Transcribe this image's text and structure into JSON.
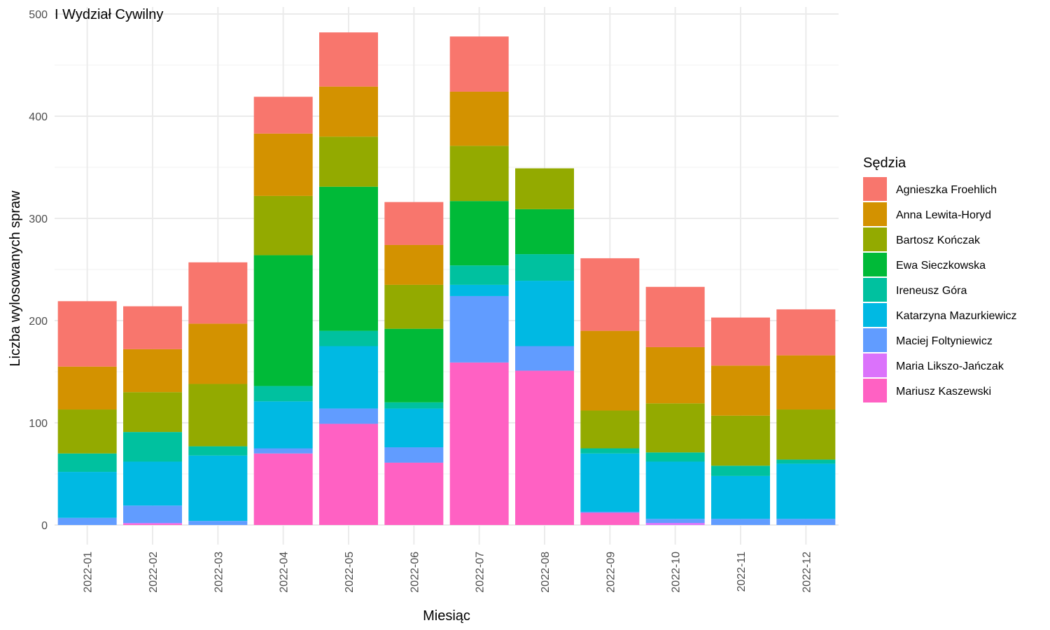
{
  "chart_data": {
    "type": "bar",
    "stacked": true,
    "panel_label": "I Wydział Cywilny",
    "xlabel": "Miesiąc",
    "ylabel": "Liczba wylosowanych spraw",
    "legend_title": "Sędzia",
    "legend_position": "right",
    "grid": true,
    "ylim": [
      0,
      500
    ],
    "yticks": [
      0,
      100,
      200,
      300,
      400,
      500
    ],
    "categories": [
      "2022-01",
      "2022-02",
      "2022-03",
      "2022-04",
      "2022-05",
      "2022-06",
      "2022-07",
      "2022-08",
      "2022-09",
      "2022-10",
      "2022-11",
      "2022-12"
    ],
    "series": [
      {
        "name": "Agnieszka Froehlich",
        "color": "#F8766D",
        "values": [
          64,
          42,
          60,
          36,
          53,
          42,
          54,
          0,
          71,
          59,
          47,
          45
        ]
      },
      {
        "name": "Anna Lewita-Horyd",
        "color": "#D39200",
        "values": [
          42,
          42,
          59,
          61,
          49,
          39,
          53,
          0,
          78,
          55,
          49,
          53
        ]
      },
      {
        "name": "Bartosz Kończak",
        "color": "#93AA00",
        "values": [
          43,
          39,
          61,
          58,
          49,
          43,
          54,
          40,
          37,
          48,
          49,
          49
        ]
      },
      {
        "name": "Ewa Sieczkowska",
        "color": "#00BA38",
        "values": [
          0,
          0,
          0,
          128,
          141,
          72,
          63,
          44,
          0,
          0,
          0,
          0
        ]
      },
      {
        "name": "Ireneusz Góra",
        "color": "#00C19F",
        "values": [
          18,
          29,
          9,
          15,
          15,
          6,
          19,
          26,
          5,
          9,
          10,
          4
        ]
      },
      {
        "name": "Katarzyna Mazurkiewicz",
        "color": "#00B9E3",
        "values": [
          45,
          43,
          64,
          46,
          61,
          38,
          11,
          64,
          57,
          56,
          42,
          54
        ]
      },
      {
        "name": "Maciej Foltyniewicz",
        "color": "#619CFF",
        "values": [
          7,
          17,
          4,
          5,
          15,
          15,
          65,
          24,
          1,
          4,
          6,
          6
        ]
      },
      {
        "name": "Maria Likszo-Jańczak",
        "color": "#DB72FB",
        "values": [
          0,
          1,
          0,
          0,
          0,
          0,
          0,
          0,
          0,
          2,
          0,
          0
        ]
      },
      {
        "name": "Mariusz Kaszewski",
        "color": "#FF61C3",
        "values": [
          0,
          1,
          0,
          70,
          99,
          61,
          159,
          151,
          12,
          0,
          0,
          0
        ]
      }
    ]
  }
}
